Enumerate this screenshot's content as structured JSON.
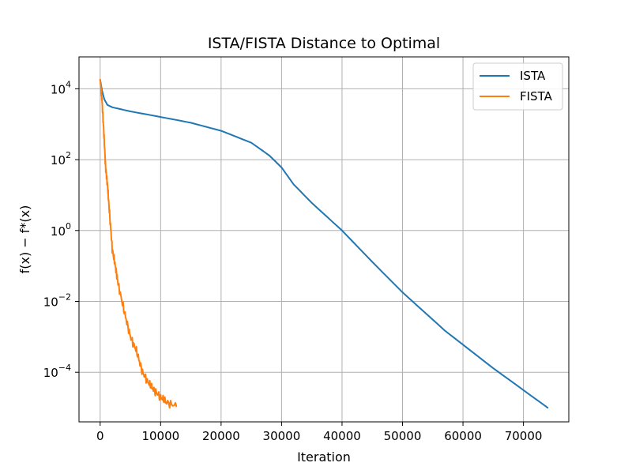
{
  "chart_data": {
    "type": "line",
    "title": "ISTA/FISTA Distance to Optimal",
    "xlabel": "Iteration",
    "ylabel": "f(x) − f*(x)",
    "xlim": [
      -3500,
      77500
    ],
    "ylim_log10": [
      -5.4,
      4.9
    ],
    "yscale": "log",
    "grid": true,
    "legend_placement": "top-right",
    "x_ticks": [
      {
        "value": 0,
        "label": "0"
      },
      {
        "value": 10000,
        "label": "10000"
      },
      {
        "value": 20000,
        "label": "20000"
      },
      {
        "value": 30000,
        "label": "30000"
      },
      {
        "value": 40000,
        "label": "40000"
      },
      {
        "value": 50000,
        "label": "50000"
      },
      {
        "value": 60000,
        "label": "60000"
      },
      {
        "value": 70000,
        "label": "70000"
      }
    ],
    "y_ticks": [
      {
        "exp": 4,
        "base": "10",
        "sup": "4"
      },
      {
        "exp": 2,
        "base": "10",
        "sup": "2"
      },
      {
        "exp": 0,
        "base": "10",
        "sup": "0"
      },
      {
        "exp": -2,
        "base": "10",
        "sup": "−2"
      },
      {
        "exp": -4,
        "base": "10",
        "sup": "−4"
      }
    ],
    "series": [
      {
        "name": "ISTA",
        "color": "#1f77b4",
        "points": [
          [
            0,
            18000
          ],
          [
            300,
            9000
          ],
          [
            700,
            5000
          ],
          [
            1200,
            3500
          ],
          [
            2000,
            3000
          ],
          [
            5000,
            2300
          ],
          [
            10000,
            1600
          ],
          [
            15000,
            1100
          ],
          [
            20000,
            650
          ],
          [
            25000,
            300
          ],
          [
            28000,
            130
          ],
          [
            30000,
            60
          ],
          [
            32000,
            20
          ],
          [
            35000,
            6
          ],
          [
            40000,
            1
          ],
          [
            45000,
            0.13
          ],
          [
            50000,
            0.018
          ],
          [
            57000,
            0.0015
          ],
          [
            65000,
            0.00013
          ],
          [
            74000,
            1e-05
          ]
        ]
      },
      {
        "name": "FISTA",
        "color": "#ff7f0e",
        "noisy": true,
        "points": [
          [
            0,
            18000
          ],
          [
            300,
            5000
          ],
          [
            600,
            600
          ],
          [
            900,
            60
          ],
          [
            1200,
            20
          ],
          [
            1500,
            4
          ],
          [
            2000,
            0.3
          ],
          [
            2500,
            0.1
          ],
          [
            3000,
            0.03
          ],
          [
            4000,
            0.005
          ],
          [
            5000,
            0.001
          ],
          [
            6000,
            0.0004
          ],
          [
            7000,
            0.0001
          ],
          [
            8000,
            5e-05
          ],
          [
            9000,
            3e-05
          ],
          [
            10000,
            2e-05
          ],
          [
            11000,
            1.4e-05
          ],
          [
            12600,
            1.1e-05
          ]
        ]
      }
    ]
  }
}
